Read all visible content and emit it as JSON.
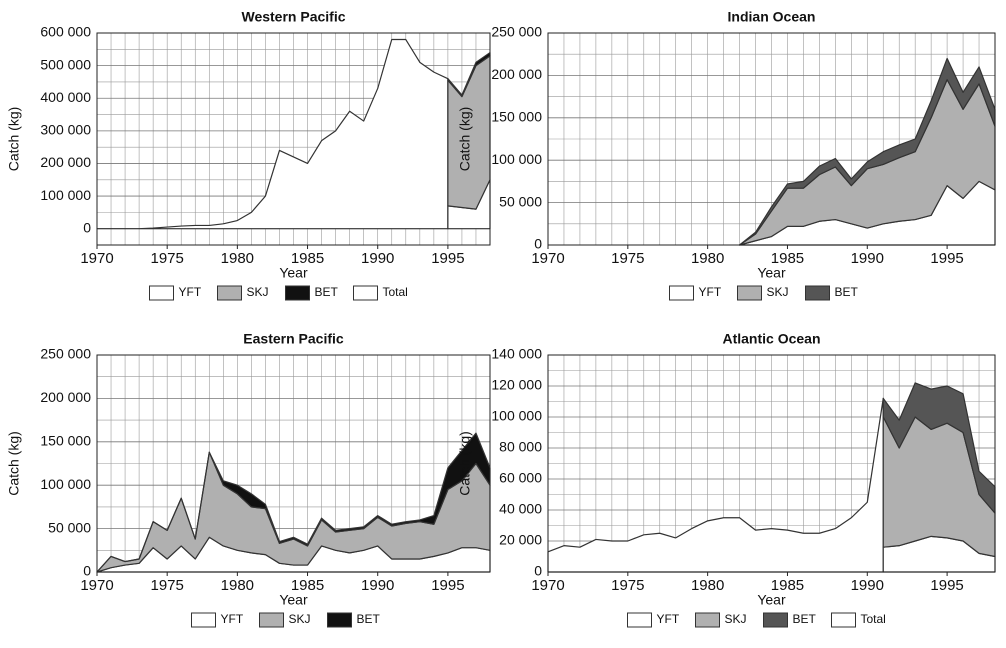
{
  "chart_data": [
    {
      "type": "area",
      "title": "Western Pacific",
      "xlabel": "Year",
      "ylabel": "Catch (kg)",
      "x": [
        1970,
        1971,
        1972,
        1973,
        1974,
        1975,
        1976,
        1977,
        1978,
        1979,
        1980,
        1981,
        1982,
        1983,
        1984,
        1985,
        1986,
        1987,
        1988,
        1989,
        1990,
        1991,
        1992,
        1993,
        1994,
        1995,
        1996,
        1997,
        1998
      ],
      "xlim": [
        1970,
        1998
      ],
      "xticks": [
        1970,
        1975,
        1980,
        1985,
        1990,
        1995
      ],
      "ylim": [
        -50000,
        600000
      ],
      "yticks": [
        0,
        {
          "value": 100000,
          "label": "100 000"
        },
        {
          "value": 200000,
          "label": "200 000"
        },
        {
          "value": 300000,
          "label": "300 000"
        },
        {
          "value": 400000,
          "label": "400 000"
        },
        {
          "value": 500000,
          "label": "500 000"
        },
        {
          "value": 600000,
          "label": "600 000"
        }
      ],
      "grid": true,
      "series": [
        {
          "name": "YFT",
          "color": "#ffffff",
          "values": [
            null,
            null,
            null,
            null,
            null,
            null,
            null,
            null,
            null,
            null,
            null,
            null,
            null,
            null,
            null,
            null,
            null,
            null,
            null,
            null,
            null,
            null,
            null,
            null,
            null,
            70000,
            65000,
            60000,
            150000
          ]
        },
        {
          "name": "SKJ",
          "color": "#b0b0b0",
          "values": [
            null,
            null,
            null,
            null,
            null,
            null,
            null,
            null,
            null,
            null,
            null,
            null,
            null,
            null,
            null,
            null,
            null,
            null,
            null,
            null,
            null,
            null,
            null,
            null,
            null,
            385000,
            340000,
            440000,
            380000
          ]
        },
        {
          "name": "BET",
          "color": "#111111",
          "values": [
            null,
            null,
            null,
            null,
            null,
            null,
            null,
            null,
            null,
            null,
            null,
            null,
            null,
            null,
            null,
            null,
            null,
            null,
            null,
            null,
            null,
            null,
            null,
            null,
            null,
            5000,
            5000,
            10000,
            10000
          ]
        },
        {
          "name": "Total",
          "color": "#ffffff",
          "stacked": false,
          "values": [
            0,
            0,
            0,
            0,
            2000,
            5000,
            8000,
            10000,
            10000,
            15000,
            25000,
            50000,
            100000,
            240000,
            220000,
            200000,
            270000,
            300000,
            360000,
            330000,
            430000,
            580000,
            580000,
            510000,
            480000,
            460000,
            null,
            null,
            null
          ]
        }
      ]
    },
    {
      "type": "area",
      "title": "Indian Ocean",
      "xlabel": "Year",
      "ylabel": "Catch (kg)",
      "x": [
        1970,
        1971,
        1972,
        1973,
        1974,
        1975,
        1976,
        1977,
        1978,
        1979,
        1980,
        1981,
        1982,
        1983,
        1984,
        1985,
        1986,
        1987,
        1988,
        1989,
        1990,
        1991,
        1992,
        1993,
        1994,
        1995,
        1996,
        1997,
        1998
      ],
      "xlim": [
        1970,
        1998
      ],
      "xticks": [
        1970,
        1975,
        1980,
        1985,
        1990,
        1995
      ],
      "ylim": [
        0,
        250000
      ],
      "yticks": [
        0,
        {
          "value": 50000,
          "label": "50 000"
        },
        {
          "value": 100000,
          "label": "100 000"
        },
        {
          "value": 150000,
          "label": "150 000"
        },
        {
          "value": 200000,
          "label": "200 000"
        },
        {
          "value": 250000,
          "label": "250 000"
        }
      ],
      "grid": true,
      "series": [
        {
          "name": "YFT",
          "color": "#ffffff",
          "values": [
            null,
            null,
            null,
            null,
            null,
            null,
            null,
            null,
            null,
            null,
            null,
            null,
            0,
            5000,
            10000,
            22000,
            22000,
            28000,
            30000,
            25000,
            20000,
            25000,
            28000,
            30000,
            35000,
            70000,
            55000,
            75000,
            65000
          ]
        },
        {
          "name": "SKJ",
          "color": "#b0b0b0",
          "values": [
            null,
            null,
            null,
            null,
            null,
            null,
            null,
            null,
            null,
            null,
            null,
            null,
            0,
            8000,
            30000,
            45000,
            45000,
            55000,
            62000,
            45000,
            70000,
            70000,
            75000,
            80000,
            115000,
            125000,
            105000,
            115000,
            75000
          ]
        },
        {
          "name": "BET",
          "color": "#555555",
          "values": [
            null,
            null,
            null,
            null,
            null,
            null,
            null,
            null,
            null,
            null,
            null,
            null,
            0,
            2000,
            5000,
            5000,
            8000,
            10000,
            10000,
            8000,
            8000,
            15000,
            15000,
            15000,
            20000,
            25000,
            20000,
            20000,
            20000
          ]
        }
      ]
    },
    {
      "type": "area",
      "title": "Eastern Pacific",
      "xlabel": "Year",
      "ylabel": "Catch (kg)",
      "x": [
        1970,
        1971,
        1972,
        1973,
        1974,
        1975,
        1976,
        1977,
        1978,
        1979,
        1980,
        1981,
        1982,
        1983,
        1984,
        1985,
        1986,
        1987,
        1988,
        1989,
        1990,
        1991,
        1992,
        1993,
        1994,
        1995,
        1996,
        1997,
        1998
      ],
      "xlim": [
        1970,
        1998
      ],
      "xticks": [
        1970,
        1975,
        1980,
        1985,
        1990,
        1995
      ],
      "ylim": [
        0,
        250000
      ],
      "yticks": [
        0,
        {
          "value": 50000,
          "label": "50 000"
        },
        {
          "value": 100000,
          "label": "100 000"
        },
        {
          "value": 150000,
          "label": "150 000"
        },
        {
          "value": 200000,
          "label": "200 000"
        },
        {
          "value": 250000,
          "label": "250 000"
        }
      ],
      "grid": true,
      "series": [
        {
          "name": "YFT",
          "color": "#ffffff",
          "values": [
            0,
            5000,
            8000,
            10000,
            28000,
            15000,
            30000,
            15000,
            40000,
            30000,
            25000,
            22000,
            20000,
            10000,
            8000,
            8000,
            30000,
            25000,
            22000,
            25000,
            30000,
            15000,
            15000,
            15000,
            18000,
            22000,
            28000,
            28000,
            25000
          ]
        },
        {
          "name": "SKJ",
          "color": "#b0b0b0",
          "values": [
            0,
            13000,
            4000,
            5000,
            30000,
            33000,
            55000,
            23000,
            98000,
            70000,
            65000,
            53000,
            53000,
            23000,
            30000,
            22000,
            30000,
            21000,
            26000,
            25000,
            33000,
            38000,
            41000,
            43000,
            37000,
            73000,
            77000,
            97000,
            75000
          ]
        },
        {
          "name": "BET",
          "color": "#111111",
          "values": [
            0,
            0,
            0,
            0,
            0,
            0,
            0,
            0,
            0,
            5000,
            10000,
            15000,
            5000,
            2000,
            2000,
            2000,
            2000,
            2000,
            2000,
            2000,
            2000,
            2000,
            2000,
            2000,
            10000,
            25000,
            35000,
            35000,
            20000
          ]
        }
      ]
    },
    {
      "type": "area",
      "title": "Atlantic Ocean",
      "xlabel": "Year",
      "ylabel": "Catch (kg)",
      "x": [
        1970,
        1971,
        1972,
        1973,
        1974,
        1975,
        1976,
        1977,
        1978,
        1979,
        1980,
        1981,
        1982,
        1983,
        1984,
        1985,
        1986,
        1987,
        1988,
        1989,
        1990,
        1991,
        1992,
        1993,
        1994,
        1995,
        1996,
        1997,
        1998
      ],
      "xlim": [
        1970,
        1998
      ],
      "xticks": [
        1970,
        1975,
        1980,
        1985,
        1990,
        1995
      ],
      "ylim": [
        0,
        140000
      ],
      "yticks": [
        0,
        {
          "value": 20000,
          "label": "20 000"
        },
        {
          "value": 40000,
          "label": "40 000"
        },
        {
          "value": 60000,
          "label": "60 000"
        },
        {
          "value": 80000,
          "label": "80 000"
        },
        {
          "value": 100000,
          "label": "100 000"
        },
        {
          "value": 120000,
          "label": "120 000"
        },
        {
          "value": 140000,
          "label": "140 000"
        }
      ],
      "grid": true,
      "series": [
        {
          "name": "YFT",
          "color": "#ffffff",
          "values": [
            null,
            null,
            null,
            null,
            null,
            null,
            null,
            null,
            null,
            null,
            null,
            null,
            null,
            null,
            null,
            null,
            null,
            null,
            null,
            null,
            null,
            16000,
            17000,
            20000,
            23000,
            22000,
            20000,
            12000,
            10000
          ]
        },
        {
          "name": "SKJ",
          "color": "#b0b0b0",
          "values": [
            null,
            null,
            null,
            null,
            null,
            null,
            null,
            null,
            null,
            null,
            null,
            null,
            null,
            null,
            null,
            null,
            null,
            null,
            null,
            null,
            null,
            84000,
            63000,
            80000,
            69000,
            74000,
            70000,
            38000,
            28000
          ]
        },
        {
          "name": "BET",
          "color": "#555555",
          "values": [
            null,
            null,
            null,
            null,
            null,
            null,
            null,
            null,
            null,
            null,
            null,
            null,
            null,
            null,
            null,
            null,
            null,
            null,
            null,
            null,
            null,
            12000,
            18000,
            22000,
            26000,
            24000,
            25000,
            15000,
            17000
          ]
        },
        {
          "name": "Total",
          "color": "#ffffff",
          "stacked": false,
          "values": [
            13000,
            17000,
            16000,
            21000,
            20000,
            20000,
            24000,
            25000,
            22000,
            28000,
            33000,
            35000,
            35000,
            27000,
            28000,
            27000,
            25000,
            25000,
            28000,
            35000,
            45000,
            112000,
            null,
            null,
            null,
            null,
            null,
            null,
            null
          ]
        }
      ]
    }
  ]
}
